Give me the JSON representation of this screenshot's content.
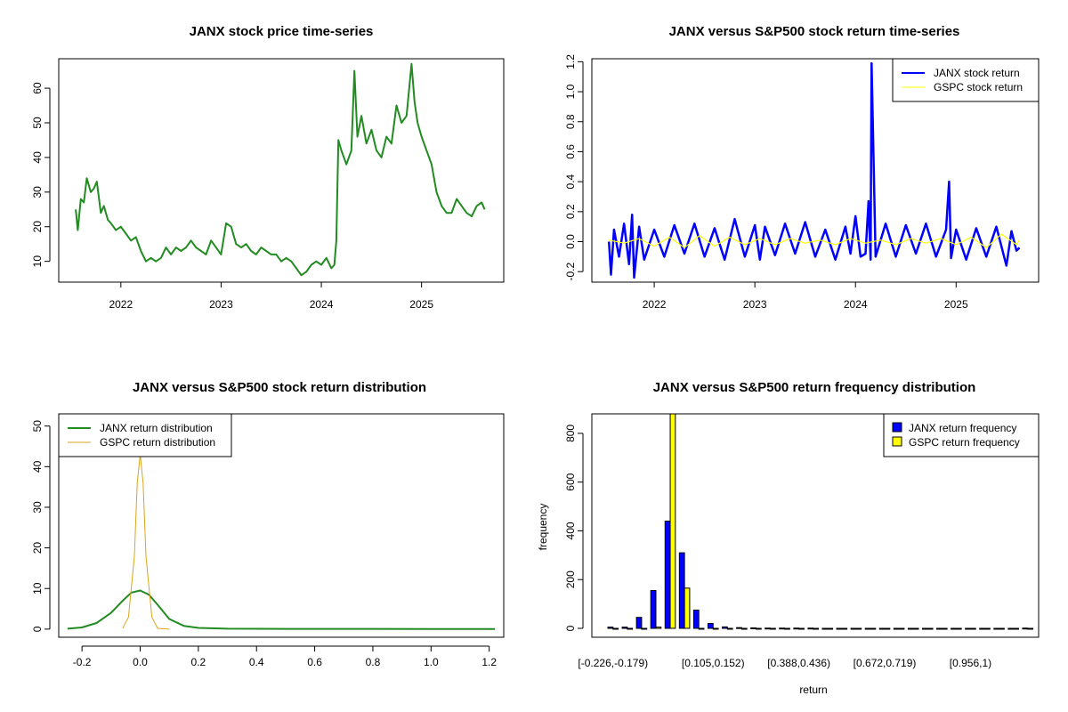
{
  "chart_data": [
    {
      "type": "line",
      "title": "JANX stock price time-series",
      "xlabel": "",
      "ylabel": "",
      "x_ticks": [
        "2022",
        "2023",
        "2024",
        "2025"
      ],
      "y_ticks": [
        10,
        20,
        30,
        40,
        50,
        60
      ],
      "xlim": [
        2021.38,
        2025.82
      ],
      "ylim": [
        4.0,
        68.5
      ],
      "color": "#228B22",
      "series": [
        {
          "name": "JANX stock price",
          "x": [
            2021.55,
            2021.57,
            2021.6,
            2021.63,
            2021.66,
            2021.7,
            2021.73,
            2021.76,
            2021.8,
            2021.83,
            2021.87,
            2021.9,
            2021.95,
            2022.0,
            2022.05,
            2022.1,
            2022.15,
            2022.2,
            2022.25,
            2022.3,
            2022.35,
            2022.4,
            2022.45,
            2022.5,
            2022.55,
            2022.6,
            2022.65,
            2022.7,
            2022.75,
            2022.8,
            2022.85,
            2022.9,
            2022.95,
            2023.0,
            2023.05,
            2023.1,
            2023.15,
            2023.2,
            2023.25,
            2023.3,
            2023.35,
            2023.4,
            2023.45,
            2023.5,
            2023.55,
            2023.6,
            2023.65,
            2023.7,
            2023.75,
            2023.8,
            2023.85,
            2023.9,
            2023.95,
            2024.0,
            2024.05,
            2024.1,
            2024.13,
            2024.15,
            2024.17,
            2024.2,
            2024.25,
            2024.3,
            2024.33,
            2024.36,
            2024.4,
            2024.45,
            2024.5,
            2024.55,
            2024.6,
            2024.65,
            2024.7,
            2024.75,
            2024.8,
            2024.85,
            2024.9,
            2024.93,
            2024.96,
            2025.0,
            2025.05,
            2025.1,
            2025.15,
            2025.2,
            2025.25,
            2025.3,
            2025.35,
            2025.4,
            2025.45,
            2025.5,
            2025.55,
            2025.6,
            2025.63
          ],
          "y": [
            25,
            19,
            28,
            27,
            34,
            30,
            31,
            33,
            24,
            26,
            22,
            21,
            19,
            20,
            18,
            16,
            17,
            13,
            10,
            11,
            10,
            11,
            14,
            12,
            14,
            13,
            14,
            16,
            14,
            13,
            12,
            16,
            14,
            12,
            21,
            20,
            15,
            14,
            15,
            13,
            12,
            14,
            13,
            12,
            12,
            10,
            11,
            10,
            8,
            6,
            7,
            9,
            10,
            9,
            11,
            8,
            9,
            16,
            45,
            42,
            38,
            42,
            65,
            46,
            52,
            44,
            48,
            42,
            40,
            46,
            44,
            55,
            50,
            52,
            67,
            56,
            50,
            46,
            42,
            38,
            30,
            26,
            24,
            24,
            28,
            26,
            24,
            23,
            26,
            27,
            25
          ]
        }
      ]
    },
    {
      "type": "line",
      "title": "JANX versus S&P500 stock return time-series",
      "xlabel": "",
      "ylabel": "",
      "x_ticks": [
        "2022",
        "2023",
        "2024",
        "2025"
      ],
      "y_ticks": [
        "-0.2",
        "0.0",
        "0.2",
        "0.4",
        "0.6",
        "0.8",
        "1.0",
        "1.2"
      ],
      "xlim": [
        2021.38,
        2025.82
      ],
      "ylim": [
        -0.27,
        1.22
      ],
      "legend": [
        "JANX stock return",
        "GSPC stock return"
      ],
      "legend_position": "top-right",
      "series": [
        {
          "name": "JANX stock return",
          "color": "#0000FF",
          "x": [
            2021.55,
            2021.57,
            2021.6,
            2021.65,
            2021.7,
            2021.75,
            2021.78,
            2021.8,
            2021.85,
            2021.9,
            2022.0,
            2022.1,
            2022.2,
            2022.3,
            2022.4,
            2022.5,
            2022.6,
            2022.7,
            2022.8,
            2022.9,
            2023.0,
            2023.05,
            2023.1,
            2023.2,
            2023.3,
            2023.4,
            2023.5,
            2023.6,
            2023.7,
            2023.8,
            2023.9,
            2023.95,
            2024.0,
            2024.05,
            2024.1,
            2024.13,
            2024.15,
            2024.16,
            2024.2,
            2024.3,
            2024.4,
            2024.5,
            2024.6,
            2024.7,
            2024.8,
            2024.9,
            2024.93,
            2024.95,
            2025.0,
            2025.1,
            2025.2,
            2025.3,
            2025.4,
            2025.5,
            2025.55,
            2025.6,
            2025.63
          ],
          "y": [
            0,
            -0.22,
            0.08,
            -0.1,
            0.12,
            -0.15,
            0.18,
            -0.24,
            0.1,
            -0.12,
            0.08,
            -0.1,
            0.11,
            -0.08,
            0.12,
            -0.1,
            0.09,
            -0.12,
            0.15,
            -0.1,
            0.11,
            -0.12,
            0.1,
            -0.09,
            0.12,
            -0.08,
            0.13,
            -0.1,
            0.08,
            -0.12,
            0.1,
            -0.08,
            0.17,
            -0.1,
            -0.08,
            0.27,
            -0.12,
            1.19,
            -0.1,
            0.12,
            -0.1,
            0.11,
            -0.08,
            0.12,
            -0.1,
            0.08,
            0.4,
            -0.11,
            0.08,
            -0.12,
            0.09,
            -0.1,
            0.1,
            -0.16,
            0.07,
            -0.06,
            -0.04
          ]
        },
        {
          "name": "GSPC stock return",
          "color": "#FFFF00",
          "x": [
            2021.55,
            2021.7,
            2021.85,
            2022.0,
            2022.15,
            2022.3,
            2022.45,
            2022.6,
            2022.75,
            2022.9,
            2023.05,
            2023.2,
            2023.35,
            2023.5,
            2023.65,
            2023.8,
            2023.95,
            2024.1,
            2024.25,
            2024.4,
            2024.55,
            2024.7,
            2024.85,
            2025.0,
            2025.15,
            2025.3,
            2025.45,
            2025.6,
            2025.63
          ],
          "y": [
            0.01,
            -0.01,
            0.02,
            -0.03,
            0.03,
            -0.04,
            0.04,
            -0.03,
            0.03,
            -0.02,
            0.02,
            -0.02,
            0.02,
            -0.01,
            0.01,
            -0.02,
            0.02,
            -0.01,
            0.01,
            -0.02,
            0.02,
            -0.01,
            0.02,
            -0.02,
            0.03,
            -0.04,
            0.05,
            -0.02,
            0.01
          ]
        }
      ]
    },
    {
      "type": "line",
      "title": "JANX versus S&P500 stock return distribution",
      "xlabel": "",
      "ylabel": "",
      "x_ticks": [
        "-0.2",
        "0.0",
        "0.2",
        "0.4",
        "0.6",
        "0.8",
        "1.0",
        "1.2"
      ],
      "y_ticks": [
        "0",
        "10",
        "20",
        "30",
        "40",
        "50"
      ],
      "xlim": [
        -0.28,
        1.25
      ],
      "ylim": [
        -2,
        53
      ],
      "legend": [
        "JANX return distribution",
        "GSPC return distribution"
      ],
      "legend_position": "top-left",
      "series": [
        {
          "name": "JANX return distribution",
          "color": "#228B22",
          "x": [
            -0.25,
            -0.2,
            -0.15,
            -0.1,
            -0.06,
            -0.03,
            0.0,
            0.03,
            0.06,
            0.1,
            0.15,
            0.2,
            0.3,
            0.5,
            0.8,
            1.0,
            1.22
          ],
          "y": [
            0.1,
            0.4,
            1.5,
            4.0,
            7.0,
            9.0,
            9.5,
            8.5,
            6.0,
            2.5,
            0.8,
            0.3,
            0.1,
            0.05,
            0.05,
            0.02,
            0.02
          ]
        },
        {
          "name": "GSPC return distribution",
          "color": "#DAA520",
          "x": [
            -0.06,
            -0.04,
            -0.02,
            -0.01,
            0.0,
            0.01,
            0.02,
            0.04,
            0.06,
            0.1
          ],
          "y": [
            0.2,
            3.0,
            18.0,
            36.0,
            43.0,
            36.0,
            18.0,
            3.0,
            0.2,
            0.0
          ]
        }
      ]
    },
    {
      "type": "bar",
      "title": "JANX versus S&P500 return frequency distribution",
      "xlabel": "return",
      "ylabel": "frequency",
      "y_ticks": [
        "0",
        "200",
        "400",
        "600",
        "800"
      ],
      "ylim": [
        0,
        880
      ],
      "tick_labels": [
        "[-0.226,-0.179)",
        "[0.105,0.152)",
        "[0.388,0.436)",
        "[0.672,0.719)",
        "[0.956,1)"
      ],
      "tick_label_bins": [
        0,
        7,
        13,
        19,
        25
      ],
      "legend": [
        "JANX return frequency",
        "GSPC return frequency"
      ],
      "legend_position": "top-right",
      "bin_count": 30,
      "series": [
        {
          "name": "JANX return frequency",
          "color": "#0000FF",
          "values": [
            5,
            5,
            45,
            155,
            440,
            310,
            75,
            20,
            6,
            3,
            2,
            1,
            1,
            1,
            1,
            0,
            0,
            0,
            0,
            0,
            0,
            0,
            0,
            0,
            0,
            0,
            0,
            0,
            0,
            1
          ]
        },
        {
          "name": "GSPC return frequency",
          "color": "#FFFF00",
          "values": [
            0,
            0,
            0,
            5,
            880,
            165,
            0,
            0,
            0,
            0,
            0,
            0,
            0,
            0,
            0,
            0,
            0,
            0,
            0,
            0,
            0,
            0,
            0,
            0,
            0,
            0,
            0,
            0,
            0,
            0
          ]
        }
      ]
    }
  ]
}
